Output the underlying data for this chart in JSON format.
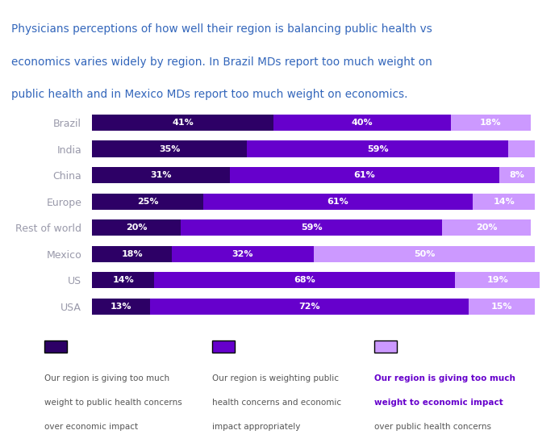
{
  "title_line1": "Physicians perceptions of how well their region is balancing public health vs",
  "title_line2": "economics varies widely by region. In Brazil MDs report too much weight on",
  "title_line3": "public health and in Mexico MDs report too much weight on economics.",
  "title_color": "#3366bb",
  "categories": [
    "Brazil",
    "India",
    "China",
    "Europe",
    "Rest of world",
    "Mexico",
    "US",
    "USA"
  ],
  "col1_values": [
    41,
    35,
    31,
    25,
    20,
    18,
    14,
    13
  ],
  "col2_values": [
    40,
    59,
    61,
    61,
    59,
    32,
    68,
    72
  ],
  "col3_values": [
    18,
    6,
    8,
    14,
    20,
    50,
    19,
    15
  ],
  "color1": "#2d0066",
  "color2": "#6600cc",
  "color3": "#cc99ff",
  "label_color": "#ffffff",
  "category_color": "#9999aa",
  "legend1_line1": "Our region is giving too much",
  "legend1_line2": "weight to public health concerns",
  "legend1_line3": "over economic impact",
  "legend2_line1": "Our region is weighting public",
  "legend2_line2": "health concerns and economic",
  "legend2_line3": "impact appropriately",
  "legend3_line1": "Our region is giving too much",
  "legend3_line2": "weight to economic impact",
  "legend3_line3": "over public health concerns",
  "legend_color": "#555555",
  "legend_bold_color": "#6600cc",
  "background_color": "#ffffff"
}
